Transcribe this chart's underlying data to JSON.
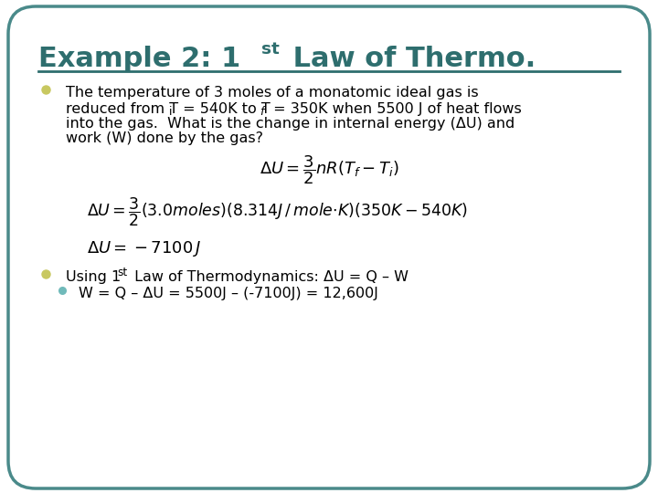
{
  "title_color": "#2E6E6E",
  "background_color": "#FFFFFF",
  "border_color": "#4A8A8A",
  "bullet_color": "#C8C860",
  "sub_bullet_color": "#70BABA",
  "text_color": "#000000",
  "title_fontsize": 22,
  "body_fontsize": 11.5,
  "eq_fontsize": 13,
  "bullet1_line1": "The temperature of 3 moles of a monatomic ideal gas is",
  "bullet1_line3": "into the gas.  What is the change in internal energy (ΔU) and",
  "bullet1_line4": "work (W) done by the gas?",
  "eq1": "$\\Delta U = \\dfrac{3}{2}nR(T_f - T_i)$",
  "eq2": "$\\Delta U = \\dfrac{3}{2}(3.0 moles)(8.314 J\\,/\\,mole{\\cdot}K)(350K - 540K)$",
  "eq3": "$\\Delta U = -7100\\,J$",
  "bullet2_line1b": " Law of Thermodynamics: ΔU = Q – W",
  "bullet2_sub": "W = Q – ΔU = 5500J – (-7100J) = 12,600J"
}
